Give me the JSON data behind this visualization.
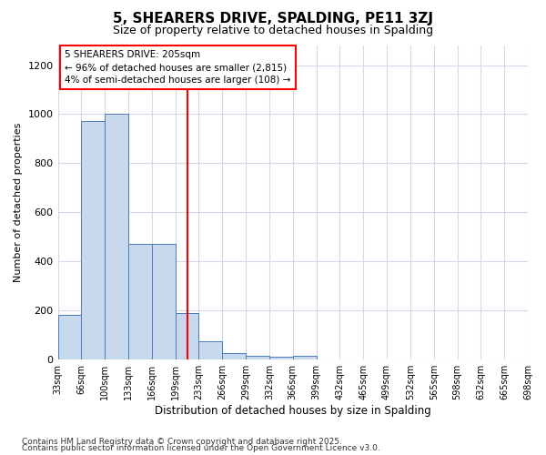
{
  "title": "5, SHEARERS DRIVE, SPALDING, PE11 3ZJ",
  "subtitle": "Size of property relative to detached houses in Spalding",
  "xlabel": "Distribution of detached houses by size in Spalding",
  "ylabel": "Number of detached properties",
  "bin_labels": [
    "33sqm",
    "66sqm",
    "100sqm",
    "133sqm",
    "166sqm",
    "199sqm",
    "233sqm",
    "266sqm",
    "299sqm",
    "332sqm",
    "366sqm",
    "399sqm",
    "432sqm",
    "465sqm",
    "499sqm",
    "532sqm",
    "565sqm",
    "598sqm",
    "632sqm",
    "665sqm",
    "698sqm"
  ],
  "bar_heights": [
    180,
    970,
    1000,
    470,
    470,
    190,
    75,
    25,
    15,
    10,
    12,
    0,
    0,
    0,
    0,
    0,
    0,
    0,
    0,
    0
  ],
  "bar_color": "#c8d8ed",
  "bar_edge_color": "#4a7db5",
  "red_line_x": 5.5,
  "annotation_line1": "5 SHEARERS DRIVE: 205sqm",
  "annotation_line2": "← 96% of detached houses are smaller (2,815)",
  "annotation_line3": "4% of semi-detached houses are larger (108) →",
  "ylim": [
    0,
    1280
  ],
  "yticks": [
    0,
    200,
    400,
    600,
    800,
    1000,
    1200
  ],
  "footer1": "Contains HM Land Registry data © Crown copyright and database right 2025.",
  "footer2": "Contains public sector information licensed under the Open Government Licence v3.0.",
  "bg_color": "#ffffff",
  "grid_color": "#d0daea"
}
